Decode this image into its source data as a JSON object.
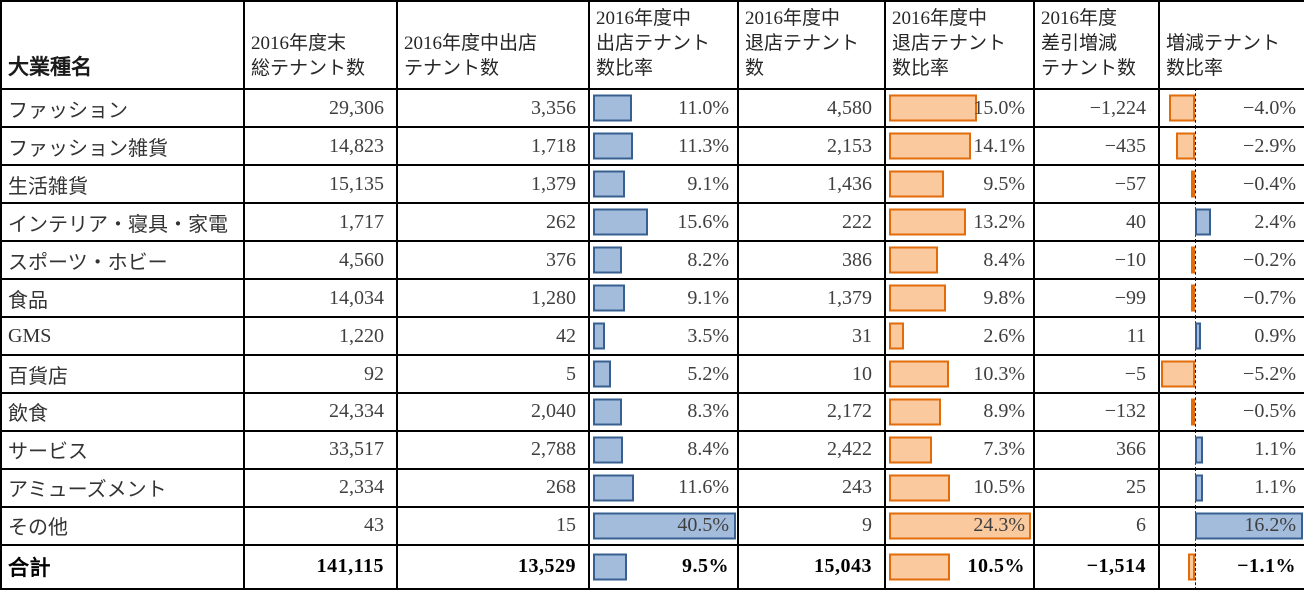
{
  "table": {
    "header": {
      "industry": "大業種名",
      "total": "2016年度末\n総テナント数",
      "open": "2016年度中出店\nテナント数",
      "open_ratio": "2016年度中\n出店テナント\n数比率",
      "close": "2016年度中\n退店テナント\n数",
      "close_ratio": "2016年度中\n退店テナント\n数比率",
      "net": "2016年度\n差引増減\nテナント数",
      "net_ratio": "増減テナント\n数比率"
    },
    "rows": [
      {
        "name": "ファッション",
        "total": "29,306",
        "open": "3,356",
        "open_ratio_text": "11.0%",
        "open_ratio": 11.0,
        "close": "4,580",
        "close_ratio_text": "15.0%",
        "close_ratio": 15.0,
        "net": "−1,224",
        "net_ratio_text": "−4.0%",
        "net_ratio": -4.0
      },
      {
        "name": "ファッション雑貨",
        "total": "14,823",
        "open": "1,718",
        "open_ratio_text": "11.3%",
        "open_ratio": 11.3,
        "close": "2,153",
        "close_ratio_text": "14.1%",
        "close_ratio": 14.1,
        "net": "−435",
        "net_ratio_text": "−2.9%",
        "net_ratio": -2.9
      },
      {
        "name": "生活雑貨",
        "total": "15,135",
        "open": "1,379",
        "open_ratio_text": "9.1%",
        "open_ratio": 9.1,
        "close": "1,436",
        "close_ratio_text": "9.5%",
        "close_ratio": 9.5,
        "net": "−57",
        "net_ratio_text": "−0.4%",
        "net_ratio": -0.4
      },
      {
        "name": "インテリア・寝具・家電",
        "total": "1,717",
        "open": "262",
        "open_ratio_text": "15.6%",
        "open_ratio": 15.6,
        "close": "222",
        "close_ratio_text": "13.2%",
        "close_ratio": 13.2,
        "net": "40",
        "net_ratio_text": "2.4%",
        "net_ratio": 2.4
      },
      {
        "name": "スポーツ・ホビー",
        "total": "4,560",
        "open": "376",
        "open_ratio_text": "8.2%",
        "open_ratio": 8.2,
        "close": "386",
        "close_ratio_text": "8.4%",
        "close_ratio": 8.4,
        "net": "−10",
        "net_ratio_text": "−0.2%",
        "net_ratio": -0.2
      },
      {
        "name": "食品",
        "total": "14,034",
        "open": "1,280",
        "open_ratio_text": "9.1%",
        "open_ratio": 9.1,
        "close": "1,379",
        "close_ratio_text": "9.8%",
        "close_ratio": 9.8,
        "net": "−99",
        "net_ratio_text": "−0.7%",
        "net_ratio": -0.7
      },
      {
        "name": "GMS",
        "total": "1,220",
        "open": "42",
        "open_ratio_text": "3.5%",
        "open_ratio": 3.5,
        "close": "31",
        "close_ratio_text": "2.6%",
        "close_ratio": 2.6,
        "net": "11",
        "net_ratio_text": "0.9%",
        "net_ratio": 0.9
      },
      {
        "name": "百貨店",
        "total": "92",
        "open": "5",
        "open_ratio_text": "5.2%",
        "open_ratio": 5.2,
        "close": "10",
        "close_ratio_text": "10.3%",
        "close_ratio": 10.3,
        "net": "−5",
        "net_ratio_text": "−5.2%",
        "net_ratio": -5.2
      },
      {
        "name": "飲食",
        "total": "24,334",
        "open": "2,040",
        "open_ratio_text": "8.3%",
        "open_ratio": 8.3,
        "close": "2,172",
        "close_ratio_text": "8.9%",
        "close_ratio": 8.9,
        "net": "−132",
        "net_ratio_text": "−0.5%",
        "net_ratio": -0.5
      },
      {
        "name": "サービス",
        "total": "33,517",
        "open": "2,788",
        "open_ratio_text": "8.4%",
        "open_ratio": 8.4,
        "close": "2,422",
        "close_ratio_text": "7.3%",
        "close_ratio": 7.3,
        "net": "366",
        "net_ratio_text": "1.1%",
        "net_ratio": 1.1
      },
      {
        "name": "アミューズメント",
        "total": "2,334",
        "open": "268",
        "open_ratio_text": "11.6%",
        "open_ratio": 11.6,
        "close": "243",
        "close_ratio_text": "10.5%",
        "close_ratio": 10.5,
        "net": "25",
        "net_ratio_text": "1.1%",
        "net_ratio": 1.1
      },
      {
        "name": "その他",
        "total": "43",
        "open": "15",
        "open_ratio_text": "40.5%",
        "open_ratio": 40.5,
        "close": "9",
        "close_ratio_text": "24.3%",
        "close_ratio": 24.3,
        "net": "6",
        "net_ratio_text": "16.2%",
        "net_ratio": 16.2
      }
    ],
    "total_row": {
      "name": "合計",
      "total": "141,115",
      "open": "13,529",
      "open_ratio_text": "9.5%",
      "open_ratio": 9.5,
      "close": "15,043",
      "close_ratio_text": "10.5%",
      "close_ratio": 10.5,
      "net": "−1,514",
      "net_ratio_text": "−1.1%",
      "net_ratio": -1.1
    }
  },
  "colors": {
    "open_bar_fill": "#A3BCDB",
    "open_bar_border": "#376091",
    "close_bar_fill": "#FACA9E",
    "close_bar_border": "#E26B0A",
    "grid": "#000000"
  },
  "chart_data": {
    "type": "table",
    "title": "",
    "columns": [
      "大業種名",
      "2016年度末総テナント数",
      "2016年度中出店テナント数",
      "2016年度中出店テナント数比率",
      "2016年度中退店テナント数",
      "2016年度中退店テナント数比率",
      "2016年度差引増減テナント数",
      "増減テナント数比率"
    ],
    "categories": [
      "ファッション",
      "ファッション雑貨",
      "生活雑貨",
      "インテリア・寝具・家電",
      "スポーツ・ホビー",
      "食品",
      "GMS",
      "百貨店",
      "飲食",
      "サービス",
      "アミューズメント",
      "その他",
      "合計"
    ],
    "rows": [
      [
        "ファッション",
        29306,
        3356,
        11.0,
        4580,
        15.0,
        -1224,
        -4.0
      ],
      [
        "ファッション雑貨",
        14823,
        1718,
        11.3,
        2153,
        14.1,
        -435,
        -2.9
      ],
      [
        "生活雑貨",
        15135,
        1379,
        9.1,
        1436,
        9.5,
        -57,
        -0.4
      ],
      [
        "インテリア・寝具・家電",
        1717,
        262,
        15.6,
        222,
        13.2,
        40,
        2.4
      ],
      [
        "スポーツ・ホビー",
        4560,
        376,
        8.2,
        386,
        8.4,
        -10,
        -0.2
      ],
      [
        "食品",
        14034,
        1280,
        9.1,
        1379,
        9.8,
        -99,
        -0.7
      ],
      [
        "GMS",
        1220,
        42,
        3.5,
        31,
        2.6,
        11,
        0.9
      ],
      [
        "百貨店",
        92,
        5,
        5.2,
        10,
        10.3,
        -5,
        -5.2
      ],
      [
        "飲食",
        24334,
        2040,
        8.3,
        2172,
        8.9,
        -132,
        -0.5
      ],
      [
        "サービス",
        33517,
        2788,
        8.4,
        2422,
        7.3,
        366,
        1.1
      ],
      [
        "アミューズメント",
        2334,
        268,
        11.6,
        243,
        10.5,
        25,
        1.1
      ],
      [
        "その他",
        43,
        15,
        40.5,
        9,
        24.3,
        6,
        16.2
      ],
      [
        "合計",
        141115,
        13529,
        9.5,
        15043,
        10.5,
        -1514,
        -1.1
      ]
    ],
    "embedded_bars": [
      {
        "column": "2016年度中出店テナント数比率",
        "type": "bar",
        "fill": "#A3BCDB",
        "border": "#376091",
        "scale_max": 40.5
      },
      {
        "column": "2016年度中退店テナント数比率",
        "type": "bar",
        "fill": "#FACA9E",
        "border": "#E26B0A",
        "scale_max": 24.3
      },
      {
        "column": "増減テナント数比率",
        "type": "diverging-bar",
        "positive_fill": "#A3BCDB",
        "negative_fill": "#FACA9E",
        "zero_axis": "dashed",
        "range": [
          -5.2,
          16.2
        ]
      }
    ]
  }
}
